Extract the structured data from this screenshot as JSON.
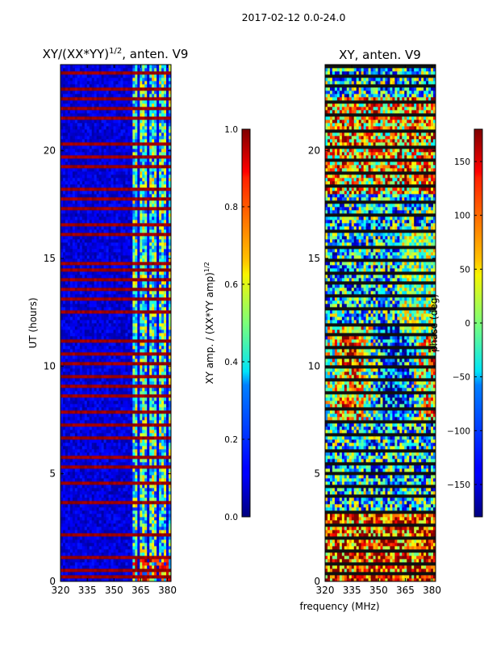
{
  "figure": {
    "suptitle": "2017-02-12 0.0-24.0",
    "shared_xlabel": "frequency (MHz)"
  },
  "chart_data": [
    {
      "type": "heatmap",
      "title_main": "XY/(XX*YY)",
      "title_sup": "1/2",
      "title_tail": ", anten. V9",
      "ylabel": "UT (hours)",
      "xlim": [
        320,
        382
      ],
      "ylim": [
        0,
        24
      ],
      "xticks": [
        "320",
        "335",
        "350",
        "365",
        "380"
      ],
      "yticks": [
        "0",
        "5",
        "10",
        "15",
        "20"
      ],
      "colorbar": {
        "label_main": "XY amp. / (XX*YY amp)",
        "label_sup": "1/2",
        "range": [
          0,
          1
        ],
        "ticks": [
          "0.0",
          "0.2",
          "0.4",
          "0.6",
          "0.8",
          "1.0"
        ],
        "colormap": "jet"
      }
    },
    {
      "type": "heatmap",
      "title": "XY, anten. V9",
      "xlim": [
        320,
        382
      ],
      "ylim": [
        0,
        24
      ],
      "xticks": [
        "320",
        "335",
        "350",
        "365",
        "380"
      ],
      "yticks": [
        "0",
        "5",
        "10",
        "15",
        "20"
      ],
      "colorbar": {
        "label": "phase (deg)",
        "range": [
          -180,
          180
        ],
        "ticks": [
          "−150",
          "−100",
          "−50",
          "0",
          "50",
          "100",
          "150"
        ],
        "colormap": "jet"
      }
    }
  ]
}
